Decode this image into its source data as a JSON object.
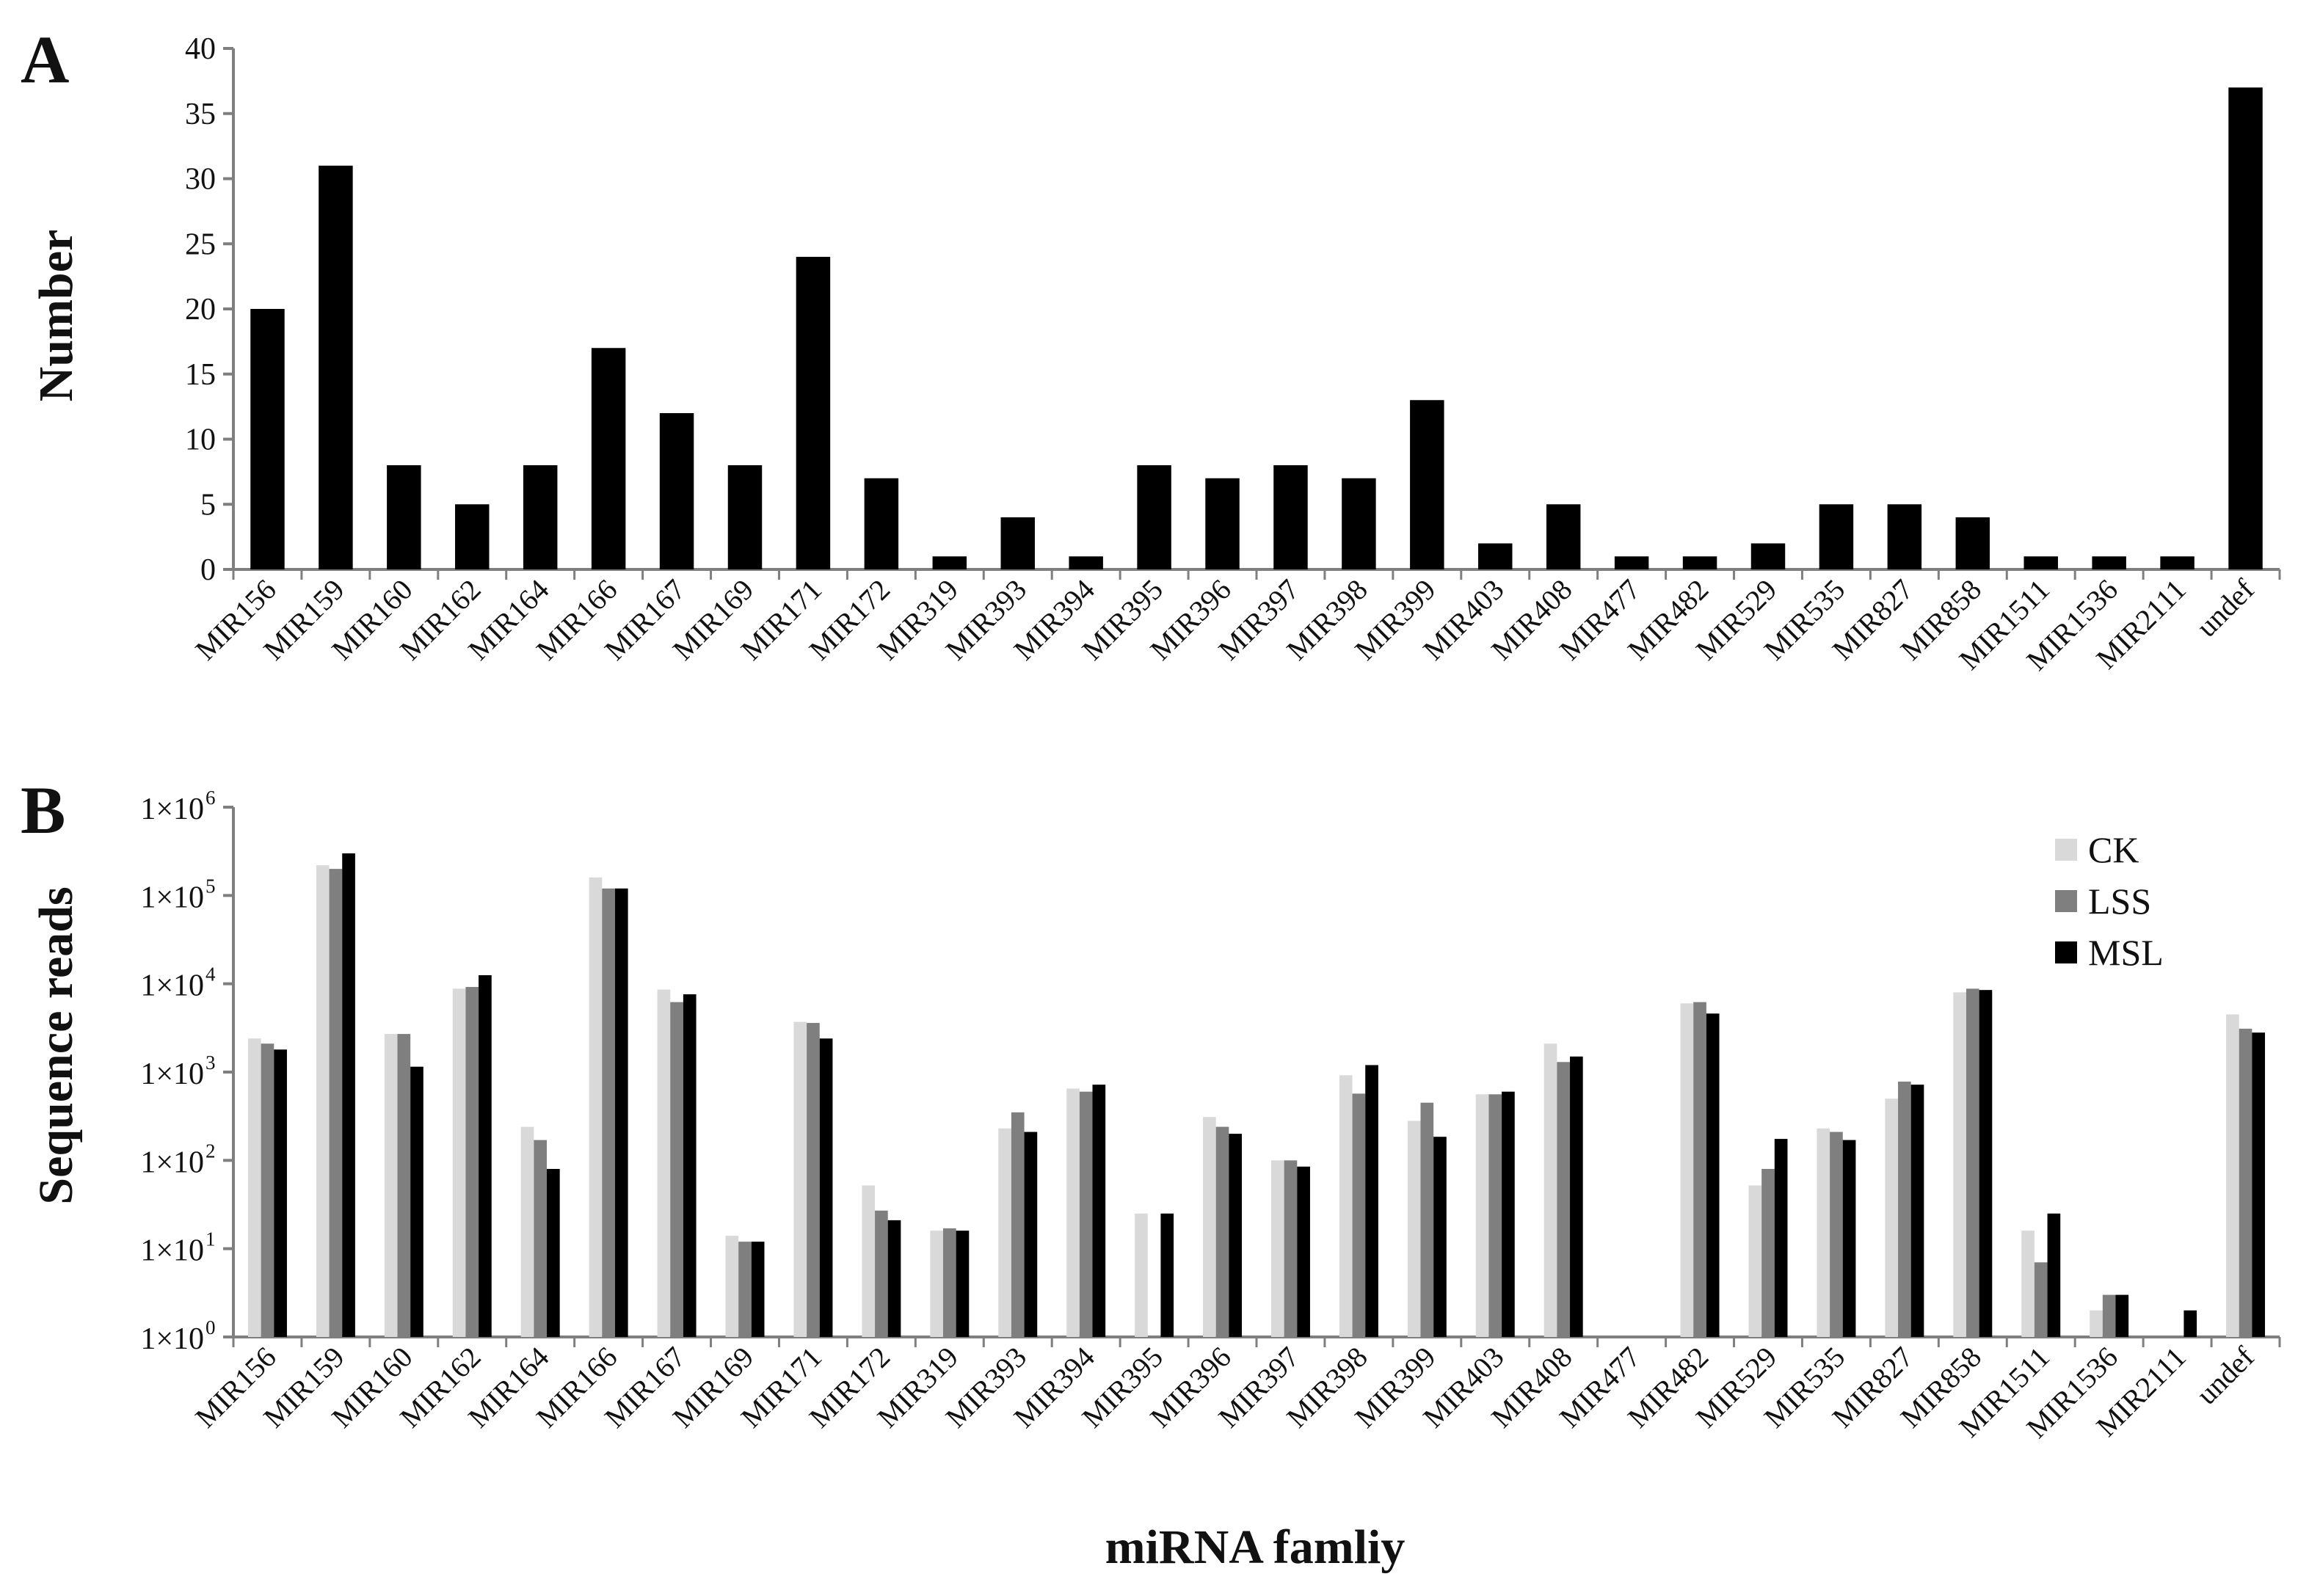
{
  "panel_a": {
    "letter": "A",
    "ylabel": "Number"
  },
  "panel_b": {
    "letter": "B",
    "ylabel": "Sequence reads",
    "xlabel": "miRNA famliy"
  },
  "colors": {
    "CK": "#d9d9d9",
    "LSS": "#7f7f7f",
    "MSL": "#000000",
    "bar": "#000000",
    "axis": "#7f7f7f"
  },
  "chart_data": [
    {
      "type": "bar",
      "panel": "A",
      "ylabel": "Number",
      "ylim": [
        0,
        40
      ],
      "yticks": [
        "0",
        "5",
        "10",
        "15",
        "20",
        "25",
        "30",
        "35",
        "40"
      ],
      "categories": [
        "MIR156",
        "MIR159",
        "MIR160",
        "MIR162",
        "MIR164",
        "MIR166",
        "MIR167",
        "MIR169",
        "MIR171",
        "MIR172",
        "MIR319",
        "MIR393",
        "MIR394",
        "MIR395",
        "MIR396",
        "MIR397",
        "MIR398",
        "MIR399",
        "MIR403",
        "MIR408",
        "MIR477",
        "MIR482",
        "MIR529",
        "MIR535",
        "MIR827",
        "MIR858",
        "MIR1511",
        "MIR1536",
        "MIR2111",
        "undef"
      ],
      "values": [
        20,
        31,
        8,
        5,
        8,
        17,
        12,
        8,
        24,
        7,
        1,
        4,
        1,
        8,
        7,
        8,
        7,
        13,
        2,
        5,
        1,
        1,
        2,
        5,
        5,
        4,
        1,
        1,
        1,
        37
      ],
      "grid": false
    },
    {
      "type": "bar",
      "panel": "B",
      "ylabel": "Sequence reads",
      "xlabel": "miRNA famliy",
      "yscale": "log",
      "ylim": [
        1,
        1000000
      ],
      "yticks": [
        {
          "base": "1×10",
          "exp": "0"
        },
        {
          "base": "1×10",
          "exp": "1"
        },
        {
          "base": "1×10",
          "exp": "2"
        },
        {
          "base": "1×10",
          "exp": "3"
        },
        {
          "base": "1×10",
          "exp": "4"
        },
        {
          "base": "1×10",
          "exp": "5"
        },
        {
          "base": "1×10",
          "exp": "6"
        }
      ],
      "legend_position": "top-right",
      "categories": [
        "MIR156",
        "MIR159",
        "MIR160",
        "MIR162",
        "MIR164",
        "MIR166",
        "MIR167",
        "MIR169",
        "MIR171",
        "MIR172",
        "MIR319",
        "MIR393",
        "MIR394",
        "MIR395",
        "MIR396",
        "MIR397",
        "MIR398",
        "MIR399",
        "MIR403",
        "MIR408",
        "MIR477",
        "MIR482",
        "MIR529",
        "MIR535",
        "MIR827",
        "MIR858",
        "MIR1511",
        "MIR1536",
        "MIR2111",
        "undef"
      ],
      "series": [
        {
          "name": "CK",
          "values": [
            2400,
            220000,
            2700,
            8800,
            240,
            160000,
            8600,
            14,
            3700,
            52,
            16,
            230,
            650,
            25,
            310,
            100,
            920,
            280,
            560,
            2100,
            null,
            6000,
            52,
            230,
            500,
            8000,
            16,
            2,
            null,
            4500
          ]
        },
        {
          "name": "LSS",
          "values": [
            2100,
            200000,
            2700,
            9200,
            170,
            120000,
            6200,
            12,
            3600,
            27,
            17,
            350,
            600,
            null,
            240,
            100,
            570,
            450,
            560,
            1300,
            null,
            6200,
            80,
            210,
            780,
            8800,
            7,
            3,
            null,
            3100
          ]
        },
        {
          "name": "MSL",
          "values": [
            1800,
            300000,
            1150,
            12500,
            80,
            120000,
            7600,
            12,
            2400,
            21,
            16,
            210,
            720,
            25,
            200,
            85,
            1200,
            185,
            600,
            1500,
            null,
            4600,
            175,
            170,
            720,
            8500,
            25,
            3,
            2,
            2800
          ]
        }
      ],
      "grid": false
    }
  ]
}
